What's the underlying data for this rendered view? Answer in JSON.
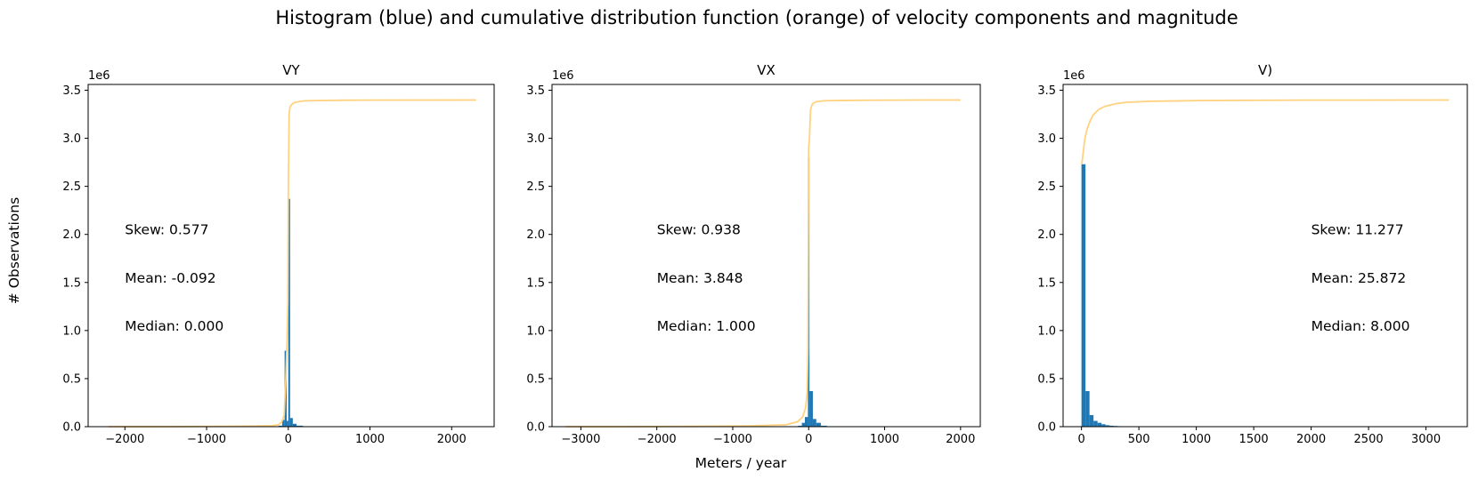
{
  "figure": {
    "suptitle": "Histogram (blue) and cumulative distribution function (orange) of velocity components and magnitude",
    "ylabel": "# Observations",
    "xlabel": "Meters / year",
    "colors": {
      "hist": "#1f77b4",
      "cdf": "#ffd27f",
      "axes": "#000000"
    }
  },
  "chart_data": [
    {
      "type": "bar",
      "title": "VY",
      "offset_text": "1e6",
      "xlim": [
        -2450,
        2520
      ],
      "ylim": [
        0,
        3.56
      ],
      "xticks": [
        -2000,
        -1000,
        0,
        1000,
        2000
      ],
      "xtick_labels": [
        "−2000",
        "−1000",
        "0",
        "1000",
        "2000"
      ],
      "yticks": [
        0,
        0.5,
        1.0,
        1.5,
        2.0,
        2.5,
        3.0,
        3.5
      ],
      "ytick_labels": [
        "0.0",
        "0.5",
        "1.0",
        "1.5",
        "2.0",
        "2.5",
        "3.0",
        "3.5"
      ],
      "bins": [
        {
          "x0": -120,
          "x1": -75,
          "value": 0.01
        },
        {
          "x0": -75,
          "x1": -45,
          "value": 0.07
        },
        {
          "x0": -45,
          "x1": -20,
          "value": 0.79
        },
        {
          "x0": -20,
          "x1": 0,
          "value": 0.06
        },
        {
          "x0": 0,
          "x1": 22,
          "value": 2.37
        },
        {
          "x0": 22,
          "x1": 55,
          "value": 0.09
        },
        {
          "x0": 55,
          "x1": 100,
          "value": 0.03
        },
        {
          "x0": 100,
          "x1": 180,
          "value": 0.01
        }
      ],
      "cdf": {
        "x": [
          -2200,
          -1500,
          -1000,
          -500,
          -200,
          -120,
          -80,
          -50,
          -30,
          -15,
          -5,
          0,
          10,
          20,
          40,
          70,
          120,
          200,
          350,
          600,
          1000,
          2300
        ],
        "y": [
          0.0,
          0.0,
          0.002,
          0.005,
          0.01,
          0.02,
          0.05,
          0.12,
          0.5,
          0.9,
          1.3,
          2.4,
          3.25,
          3.32,
          3.35,
          3.37,
          3.38,
          3.39,
          3.392,
          3.395,
          3.397,
          3.398
        ]
      },
      "stats": [
        {
          "label": "Skew: 0.577",
          "x": -2000,
          "y": 2.0
        },
        {
          "label": "Mean: -0.092",
          "x": -2000,
          "y": 1.5
        },
        {
          "label": "Median: 0.000",
          "x": -2000,
          "y": 1.0
        }
      ]
    },
    {
      "type": "bar",
      "title": "VX",
      "offset_text": "1e6",
      "xlim": [
        -3380,
        2260
      ],
      "ylim": [
        0,
        3.56
      ],
      "xticks": [
        -3000,
        -2000,
        -1000,
        0,
        1000,
        2000
      ],
      "xtick_labels": [
        "−3000",
        "−2000",
        "−1000",
        "0",
        "1000",
        "2000"
      ],
      "yticks": [
        0,
        0.5,
        1.0,
        1.5,
        2.0,
        2.5,
        3.0,
        3.5
      ],
      "ytick_labels": [
        "0.0",
        "0.5",
        "1.0",
        "1.5",
        "2.0",
        "2.5",
        "3.0",
        "3.5"
      ],
      "bins": [
        {
          "x0": -140,
          "x1": -90,
          "value": 0.01
        },
        {
          "x0": -90,
          "x1": -50,
          "value": 0.04
        },
        {
          "x0": -50,
          "x1": -10,
          "value": 0.1
        },
        {
          "x0": -10,
          "x1": 10,
          "value": 2.8
        },
        {
          "x0": 10,
          "x1": 55,
          "value": 0.37
        },
        {
          "x0": 55,
          "x1": 100,
          "value": 0.08
        },
        {
          "x0": 100,
          "x1": 160,
          "value": 0.04
        },
        {
          "x0": 160,
          "x1": 240,
          "value": 0.01
        }
      ],
      "cdf": {
        "x": [
          -3200,
          -2500,
          -1500,
          -800,
          -300,
          -150,
          -80,
          -40,
          -20,
          -10,
          0,
          10,
          25,
          50,
          100,
          200,
          400,
          800,
          1500,
          2000
        ],
        "y": [
          0.0,
          0.0,
          0.003,
          0.008,
          0.02,
          0.05,
          0.1,
          0.2,
          0.35,
          0.8,
          2.9,
          3.0,
          3.3,
          3.36,
          3.38,
          3.39,
          3.393,
          3.396,
          3.398,
          3.398
        ]
      },
      "stats": [
        {
          "label": "Skew: 0.938",
          "x": -2000,
          "y": 2.0
        },
        {
          "label": "Mean: 3.848",
          "x": -2000,
          "y": 1.5
        },
        {
          "label": "Median: 1.000",
          "x": -2000,
          "y": 1.0
        }
      ]
    },
    {
      "type": "bar",
      "title": "V)",
      "offset_text": "1e6",
      "xlim": [
        -160,
        3360
      ],
      "ylim": [
        0,
        3.56
      ],
      "xticks": [
        0,
        500,
        1000,
        1500,
        2000,
        2500,
        3000
      ],
      "xtick_labels": [
        "0",
        "500",
        "1000",
        "1500",
        "2000",
        "2500",
        "3000"
      ],
      "yticks": [
        0,
        0.5,
        1.0,
        1.5,
        2.0,
        2.5,
        3.0,
        3.5
      ],
      "ytick_labels": [
        "0.0",
        "0.5",
        "1.0",
        "1.5",
        "2.0",
        "2.5",
        "3.0",
        "3.5"
      ],
      "bins": [
        {
          "x0": 0,
          "x1": 35,
          "value": 2.73
        },
        {
          "x0": 35,
          "x1": 70,
          "value": 0.37
        },
        {
          "x0": 70,
          "x1": 105,
          "value": 0.12
        },
        {
          "x0": 105,
          "x1": 140,
          "value": 0.06
        },
        {
          "x0": 140,
          "x1": 175,
          "value": 0.04
        },
        {
          "x0": 175,
          "x1": 210,
          "value": 0.025
        },
        {
          "x0": 210,
          "x1": 245,
          "value": 0.015
        },
        {
          "x0": 245,
          "x1": 280,
          "value": 0.01
        },
        {
          "x0": 280,
          "x1": 315,
          "value": 0.007
        },
        {
          "x0": 315,
          "x1": 350,
          "value": 0.005
        }
      ],
      "cdf": {
        "x": [
          0,
          5,
          15,
          30,
          50,
          75,
          100,
          150,
          200,
          300,
          400,
          600,
          1000,
          1500,
          2000,
          3200
        ],
        "y": [
          2.73,
          2.75,
          2.85,
          3.0,
          3.1,
          3.18,
          3.24,
          3.3,
          3.33,
          3.36,
          3.375,
          3.385,
          3.392,
          3.395,
          3.397,
          3.398
        ]
      },
      "stats": [
        {
          "label": "Skew: 11.277",
          "x": 2000,
          "y": 2.0
        },
        {
          "label": "Mean: 25.872",
          "x": 2000,
          "y": 1.5
        },
        {
          "label": "Median: 8.000",
          "x": 2000,
          "y": 1.0
        }
      ]
    }
  ]
}
